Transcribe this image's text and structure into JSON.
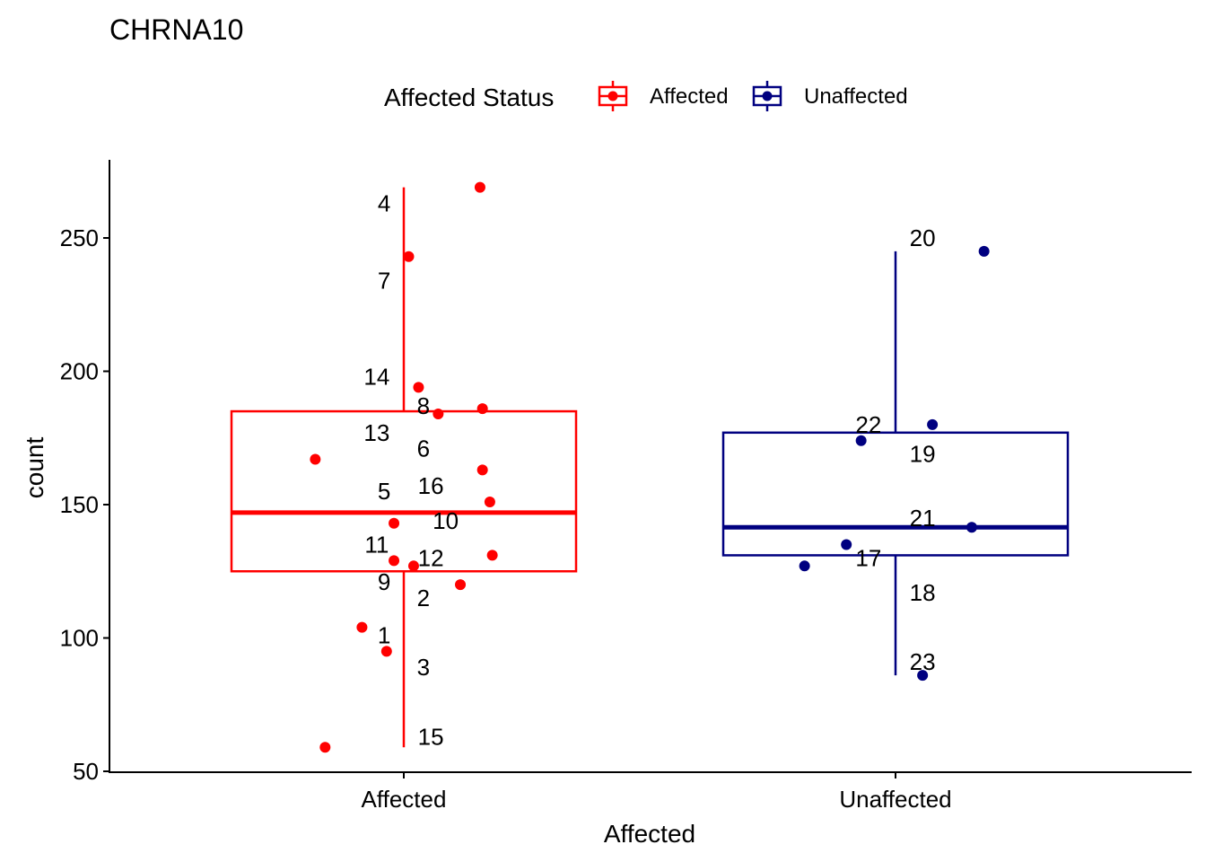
{
  "chart_data": {
    "type": "boxplot",
    "title": "CHRNA10",
    "xlabel": "Affected",
    "ylabel": "count",
    "ylim": [
      50,
      280
    ],
    "yticks": [
      50,
      100,
      150,
      200,
      250
    ],
    "categories": [
      "Affected",
      "Unaffected"
    ],
    "legend": {
      "title": "Affected Status",
      "position": "top",
      "items": [
        {
          "label": "Affected",
          "color": "#ff0000"
        },
        {
          "label": "Unaffected",
          "color": "#000080"
        }
      ]
    },
    "boxes": [
      {
        "category": "Affected",
        "color": "#ff0000",
        "min": 59,
        "q1": 125,
        "median": 147,
        "q3": 185,
        "max": 269
      },
      {
        "category": "Unaffected",
        "color": "#000080",
        "min": 86,
        "q1": 131,
        "median": 141.5,
        "q3": 177,
        "max": 245
      }
    ],
    "points": [
      {
        "label": "1",
        "category": "Affected",
        "value": 104,
        "jitter": -0.085,
        "label_jitter": -0.04,
        "label_value": 101
      },
      {
        "label": "2",
        "category": "Affected",
        "value": 120,
        "jitter": 0.115,
        "label_jitter": 0.04,
        "label_value": 115
      },
      {
        "label": "3",
        "category": "Affected",
        "value": 95,
        "jitter": -0.035,
        "label_jitter": 0.04,
        "label_value": 89
      },
      {
        "label": "4",
        "category": "Affected",
        "value": 269,
        "jitter": 0.155,
        "label_jitter": -0.04,
        "label_value": 263
      },
      {
        "label": "5",
        "category": "Affected",
        "value": 151,
        "jitter": 0.175,
        "label_jitter": -0.04,
        "label_value": 155
      },
      {
        "label": "6",
        "category": "Affected",
        "value": 186,
        "jitter": 0.16,
        "label_jitter": 0.04,
        "label_value": 171
      },
      {
        "label": "7",
        "category": "Affected",
        "value": 243,
        "jitter": 0.01,
        "label_jitter": -0.04,
        "label_value": 234
      },
      {
        "label": "8",
        "category": "Affected",
        "value": 184,
        "jitter": 0.07,
        "label_jitter": 0.04,
        "label_value": 187
      },
      {
        "label": "9",
        "category": "Affected",
        "value": 127,
        "jitter": 0.02,
        "label_jitter": -0.04,
        "label_value": 121
      },
      {
        "label": "10",
        "category": "Affected",
        "value": 143,
        "jitter": -0.02,
        "label_jitter": 0.085,
        "label_value": 144
      },
      {
        "label": "11",
        "category": "Affected",
        "value": 129,
        "jitter": -0.02,
        "label_jitter": -0.055,
        "label_value": 135
      },
      {
        "label": "12",
        "category": "Affected",
        "value": 131,
        "jitter": 0.18,
        "label_jitter": 0.055,
        "label_value": 130
      },
      {
        "label": "13",
        "category": "Affected",
        "value": 167,
        "jitter": -0.18,
        "label_jitter": -0.055,
        "label_value": 177
      },
      {
        "label": "14",
        "category": "Affected",
        "value": 194,
        "jitter": 0.03,
        "label_jitter": -0.055,
        "label_value": 198
      },
      {
        "label": "15",
        "category": "Affected",
        "value": 59,
        "jitter": -0.16,
        "label_jitter": 0.055,
        "label_value": 63
      },
      {
        "label": "16",
        "category": "Affected",
        "value": 163,
        "jitter": 0.16,
        "label_jitter": 0.055,
        "label_value": 157
      },
      {
        "label": "17",
        "category": "Unaffected",
        "value": 127,
        "jitter": -0.185,
        "label_jitter": -0.055,
        "label_value": 130
      },
      {
        "label": "18",
        "category": "Unaffected",
        "value": 135,
        "jitter": -0.1,
        "label_jitter": 0.055,
        "label_value": 117
      },
      {
        "label": "19",
        "category": "Unaffected",
        "value": 180,
        "jitter": 0.075,
        "label_jitter": 0.055,
        "label_value": 169
      },
      {
        "label": "20",
        "category": "Unaffected",
        "value": 245,
        "jitter": 0.18,
        "label_jitter": 0.055,
        "label_value": 250
      },
      {
        "label": "21",
        "category": "Unaffected",
        "value": 141.5,
        "jitter": 0.155,
        "label_jitter": 0.055,
        "label_value": 145
      },
      {
        "label": "22",
        "category": "Unaffected",
        "value": 174,
        "jitter": -0.07,
        "label_jitter": -0.055,
        "label_value": 180
      },
      {
        "label": "23",
        "category": "Unaffected",
        "value": 86,
        "jitter": 0.055,
        "label_jitter": 0.055,
        "label_value": 91
      }
    ]
  }
}
